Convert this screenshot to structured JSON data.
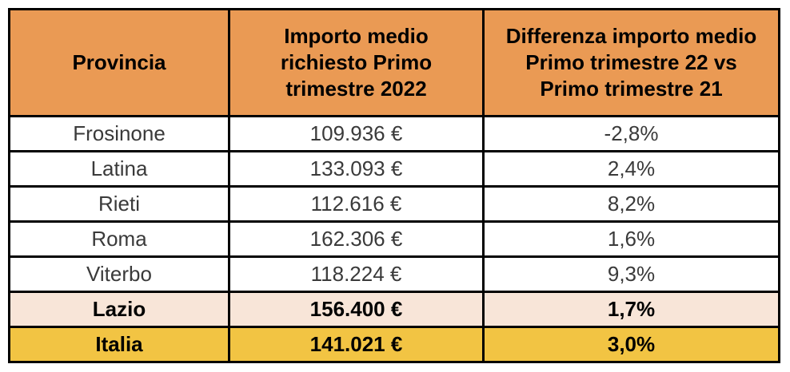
{
  "table": {
    "columns": [
      {
        "id": "provincia",
        "label": "Provincia"
      },
      {
        "id": "importo",
        "label": "Importo medio\nrichiesto Primo\ntrimestre 2022"
      },
      {
        "id": "differenza",
        "label": "Differenza importo medio\nPrimo trimestre 22 vs\nPrimo trimestre 21"
      }
    ],
    "rows": [
      {
        "provincia": "Frosinone",
        "importo": "109.936 €",
        "differenza": "-2,8%",
        "type": "data"
      },
      {
        "provincia": "Latina",
        "importo": "133.093 €",
        "differenza": "2,4%",
        "type": "data"
      },
      {
        "provincia": "Rieti",
        "importo": "112.616 €",
        "differenza": "8,2%",
        "type": "data"
      },
      {
        "provincia": "Roma",
        "importo": "162.306 €",
        "differenza": "1,6%",
        "type": "data"
      },
      {
        "provincia": "Viterbo",
        "importo": "118.224 €",
        "differenza": "9,3%",
        "type": "data"
      },
      {
        "provincia": "Lazio",
        "importo": "156.400 €",
        "differenza": "1,7%",
        "type": "total-lazio"
      },
      {
        "provincia": "Italia",
        "importo": "141.021 €",
        "differenza": "3,0%",
        "type": "total-italia"
      }
    ],
    "colors": {
      "header_bg": "#EA9A54",
      "lazio_row_bg": "#F8E5D8",
      "italia_row_bg": "#F2C443",
      "border": "#000000",
      "data_text": "#3A3A3A",
      "header_text": "#000000"
    }
  },
  "chart_data": {
    "type": "table",
    "columns": [
      "Provincia",
      "Importo medio richiesto Primo trimestre 2022",
      "Differenza importo medio Primo trimestre 22 vs Primo trimestre 21"
    ],
    "rows": [
      [
        "Frosinone",
        "109.936 €",
        "-2,8%"
      ],
      [
        "Latina",
        "133.093 €",
        "2,4%"
      ],
      [
        "Rieti",
        "112.616 €",
        "8,2%"
      ],
      [
        "Roma",
        "162.306 €",
        "1,6%"
      ],
      [
        "Viterbo",
        "118.224 €",
        "9,3%"
      ],
      [
        "Lazio",
        "156.400 €",
        "1,7%"
      ],
      [
        "Italia",
        "141.021 €",
        "3,0%"
      ]
    ],
    "highlight_rows": {
      "Lazio": "summary-region",
      "Italia": "summary-country"
    }
  }
}
